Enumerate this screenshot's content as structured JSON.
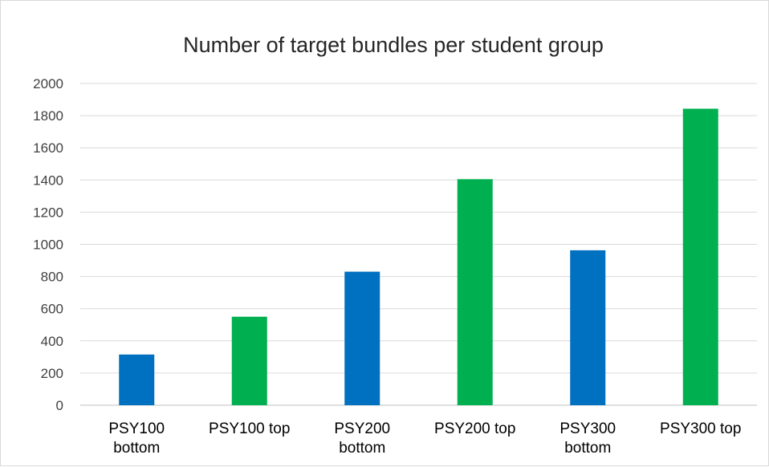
{
  "chart_data": {
    "type": "bar",
    "title": "Number of target bundles per student group",
    "categories": [
      [
        "PSY100",
        "bottom"
      ],
      [
        "PSY100 top"
      ],
      [
        "PSY200",
        "bottom"
      ],
      [
        "PSY200 top"
      ],
      [
        "PSY300",
        "bottom"
      ],
      [
        "PSY300 top"
      ]
    ],
    "values": [
      315,
      550,
      830,
      1405,
      963,
      1843
    ],
    "bar_colors": [
      "#0070C0",
      "#00B050",
      "#0070C0",
      "#00B050",
      "#0070C0",
      "#00B050"
    ],
    "xlabel": "",
    "ylabel": "",
    "ylim": [
      0,
      2000
    ],
    "yticks": [
      0,
      200,
      400,
      600,
      800,
      1000,
      1200,
      1400,
      1600,
      1800,
      2000
    ],
    "grid": true,
    "legend": "none"
  }
}
